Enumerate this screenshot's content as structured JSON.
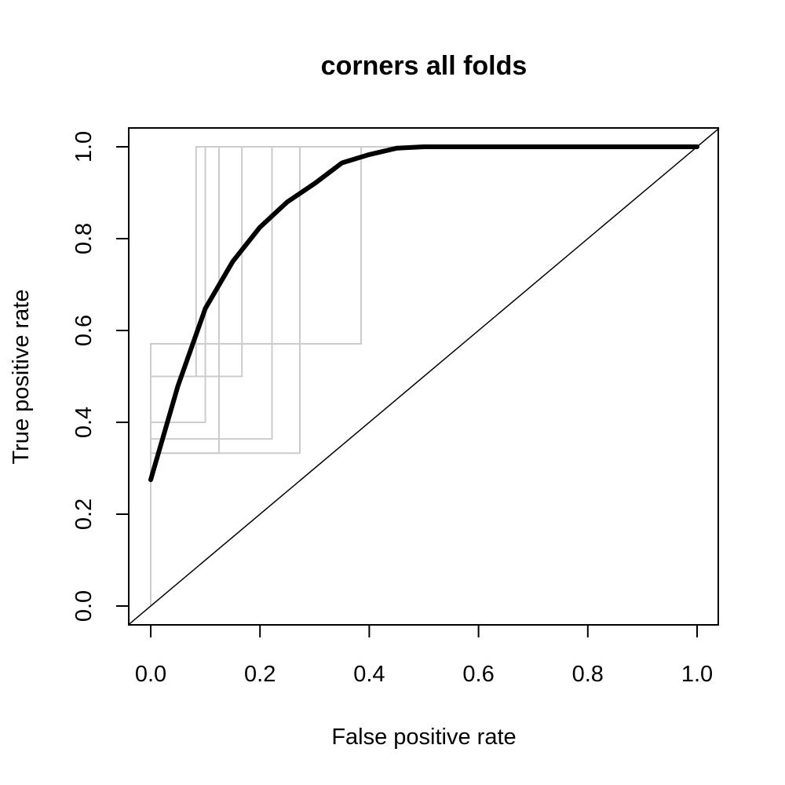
{
  "chart_data": {
    "type": "line",
    "title": "corners all folds",
    "xlabel": "False positive rate",
    "ylabel": "True positive rate",
    "xlim": [
      0,
      1
    ],
    "ylim": [
      0,
      1
    ],
    "x_ticks": [
      "0.0",
      "0.2",
      "0.4",
      "0.6",
      "0.8",
      "1.0"
    ],
    "y_ticks": [
      "0.0",
      "0.2",
      "0.4",
      "0.6",
      "0.8",
      "1.0"
    ],
    "grid": false,
    "legend": "none",
    "diagonal": {
      "x": [
        0,
        1
      ],
      "y": [
        0,
        1
      ]
    },
    "average_curve": {
      "color": "#000000",
      "x": [
        0,
        0.05,
        0.1,
        0.15,
        0.2,
        0.25,
        0.3,
        0.35,
        0.4,
        0.45,
        0.5,
        0.55,
        0.6,
        0.65,
        0.7,
        0.75,
        0.8,
        0.85,
        0.9,
        0.95,
        1.0
      ],
      "y": [
        0.275,
        0.48,
        0.648,
        0.75,
        0.825,
        0.88,
        0.92,
        0.965,
        0.983,
        0.997,
        1.0,
        1.0,
        1.0,
        1.0,
        1.0,
        1.0,
        1.0,
        1.0,
        1.0,
        1.0,
        1.0
      ]
    },
    "folds": {
      "color": "#cccccc",
      "series": [
        {
          "x": [
            0,
            0,
            0.083,
            0.083,
            1.0
          ],
          "y": [
            0,
            0.5,
            0.5,
            1.0,
            1.0
          ]
        },
        {
          "x": [
            0,
            0,
            0.1,
            0.1,
            1.0
          ],
          "y": [
            0,
            0.4,
            0.4,
            1.0,
            1.0
          ]
        },
        {
          "x": [
            0,
            0,
            0.125,
            0.125,
            1.0
          ],
          "y": [
            0,
            0.333,
            0.333,
            1.0,
            1.0
          ]
        },
        {
          "x": [
            0,
            0,
            0.167,
            0.167,
            1.0
          ],
          "y": [
            0,
            0.5,
            0.5,
            1.0,
            1.0
          ]
        },
        {
          "x": [
            0,
            0,
            0.222,
            0.222,
            1.0
          ],
          "y": [
            0,
            0.364,
            0.364,
            1.0,
            1.0
          ]
        },
        {
          "x": [
            0,
            0,
            0.273,
            0.273,
            1.0
          ],
          "y": [
            0,
            0.333,
            0.333,
            1.0,
            1.0
          ]
        },
        {
          "x": [
            0,
            0,
            0.385,
            0.385,
            1.0
          ],
          "y": [
            0,
            0.571,
            0.571,
            1.0,
            1.0
          ]
        }
      ]
    }
  }
}
